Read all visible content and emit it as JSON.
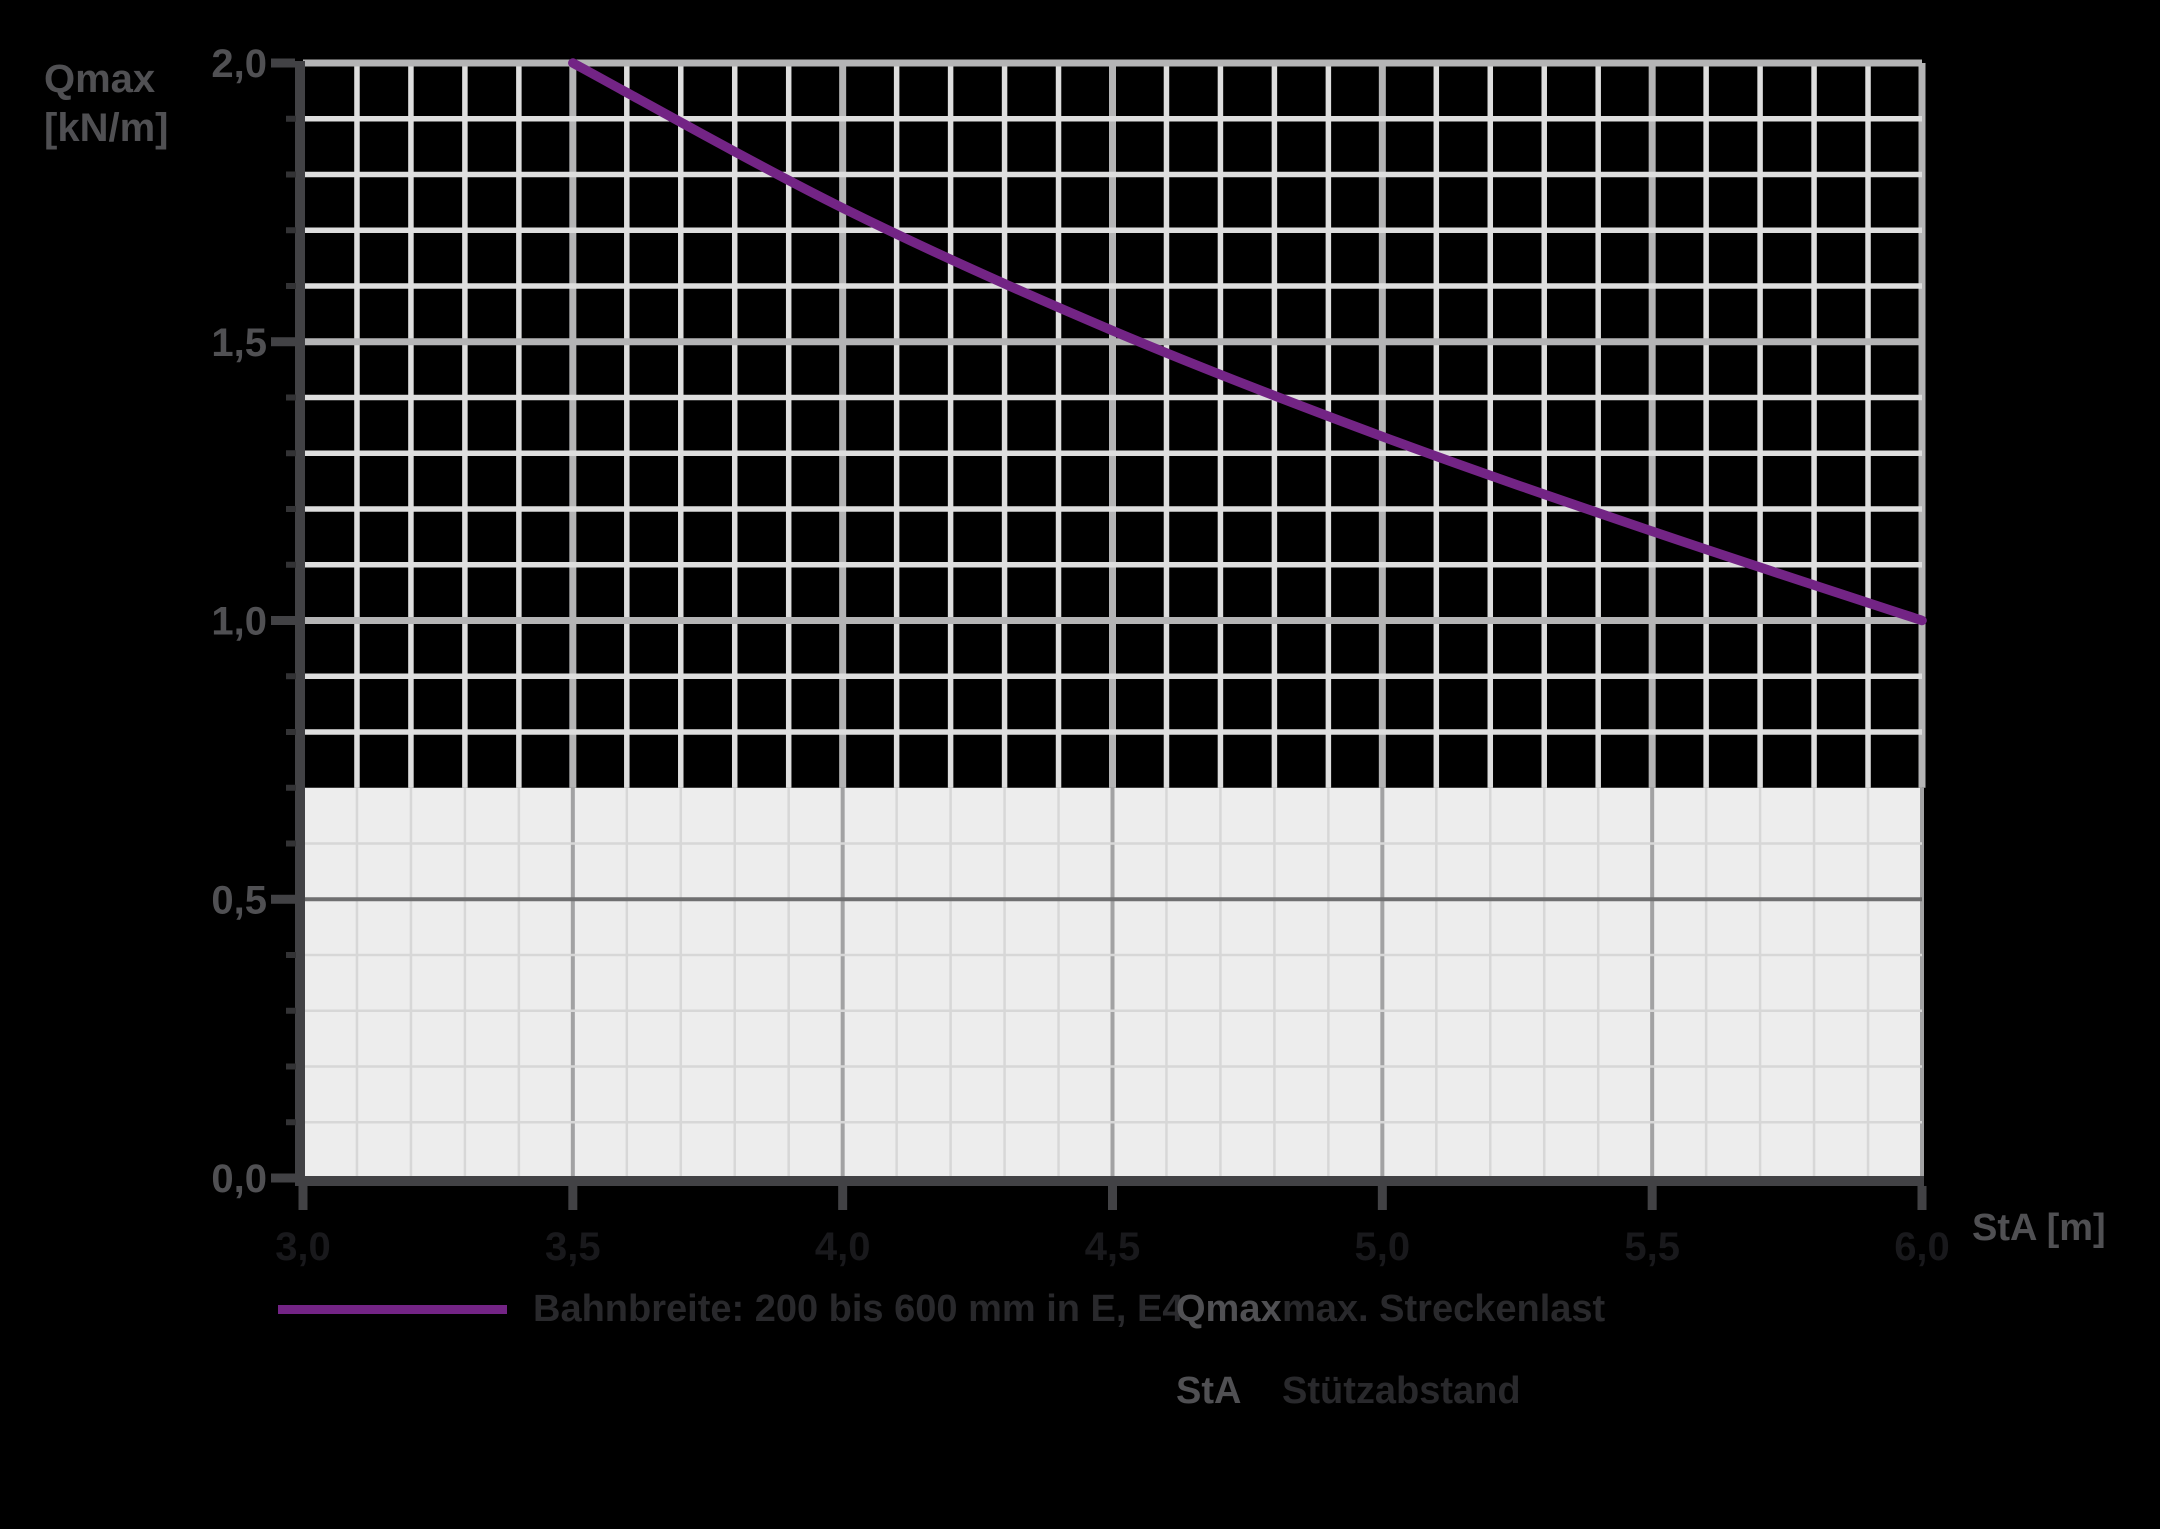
{
  "chart_data": {
    "type": "line",
    "title": "",
    "x_axis": {
      "label": "StA [m]",
      "min": 3.0,
      "max": 6.0,
      "minor_step": 0.1,
      "major_step": 0.5,
      "ticks": [
        {
          "value": 3.0,
          "label": "3,0"
        },
        {
          "value": 3.5,
          "label": "3,5"
        },
        {
          "value": 4.0,
          "label": "4,0"
        },
        {
          "value": 4.5,
          "label": "4,5"
        },
        {
          "value": 5.0,
          "label": "5,0"
        },
        {
          "value": 5.5,
          "label": "5,5"
        },
        {
          "value": 6.0,
          "label": "6,0"
        }
      ]
    },
    "y_axis": {
      "label_line1": "Qmax",
      "label_line2": "[kN/m]",
      "min": 0.0,
      "max": 2.0,
      "minor_step": 0.1,
      "major_step": 0.5,
      "ticks": [
        {
          "value": 0.0,
          "label": "0,0"
        },
        {
          "value": 0.5,
          "label": "0,5"
        },
        {
          "value": 1.0,
          "label": "1,0"
        },
        {
          "value": 1.5,
          "label": "1,5"
        },
        {
          "value": 2.0,
          "label": "2,0"
        }
      ]
    },
    "grid": true,
    "shaded_band": {
      "from": 0.0,
      "to": 0.7,
      "fill": "#ededed"
    },
    "series": [
      {
        "name": "Bahnbreite: 200 bis 600 mm in E, E4",
        "color": "#732485",
        "points": [
          [
            3.5,
            2.0
          ],
          [
            4.0,
            1.74
          ],
          [
            4.5,
            1.52
          ],
          [
            5.0,
            1.33
          ],
          [
            5.5,
            1.16
          ],
          [
            6.0,
            1.0
          ]
        ]
      }
    ],
    "legend_position": "bottom"
  },
  "colors": {
    "background": "#000000",
    "axis": "#424245",
    "minor_tick": "#333335",
    "grid_minor_upper": "#dedede",
    "grid_major_upper": "#b4b4b5",
    "grid_minor_lower": "#d7d7d7",
    "grid_major_vertical_lower": "#a2a2a3",
    "grid_major_horizontal_lower": "#6f6f70",
    "tick_label_gray": "#505053",
    "x_tick_label_dark": "#19191c",
    "legend_text_dark": "#29292c"
  },
  "legend": {
    "series_label": "Bahnbreite: 200 bis 600 mm in E, E4",
    "definitions": [
      {
        "term": "Qmax",
        "description": "max. Streckenlast"
      },
      {
        "term": "StA",
        "description": "Stützabstand"
      }
    ]
  }
}
